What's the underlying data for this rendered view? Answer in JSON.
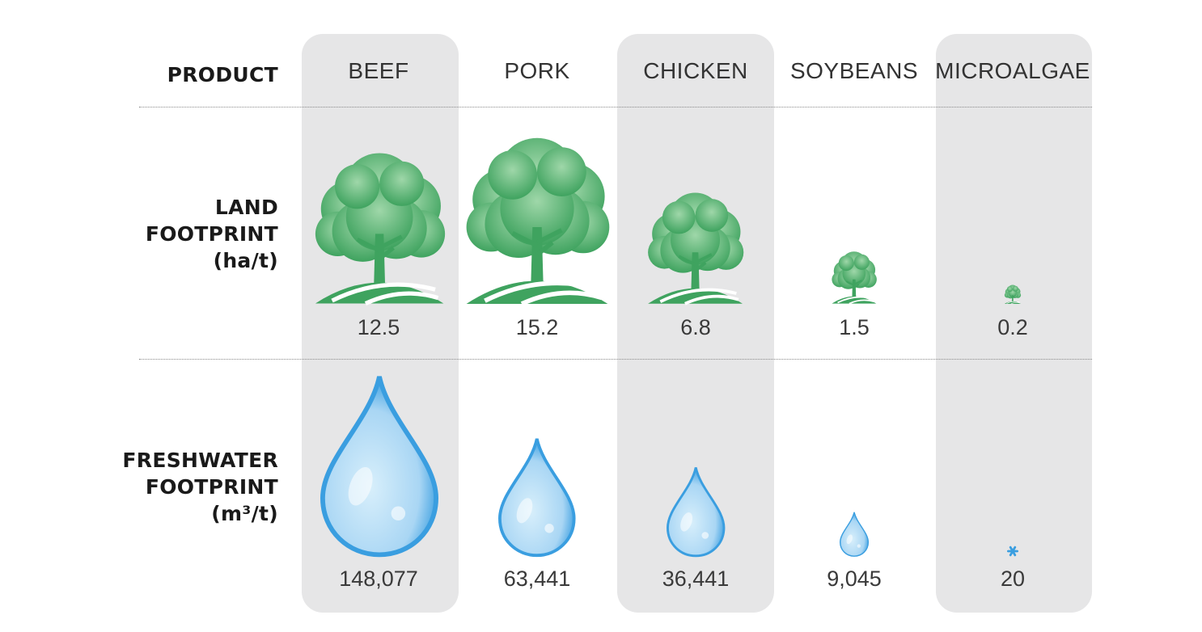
{
  "chart_data": {
    "type": "table",
    "row_headers": {
      "product": "PRODUCT",
      "land": [
        "LAND",
        "FOOTPRINT",
        "(ha/t)"
      ],
      "water": [
        "FRESHWATER",
        "FOOTPRINT",
        "(m³/t)"
      ]
    },
    "products": [
      {
        "name": "BEEF",
        "land": 12.5,
        "land_label": "12.5",
        "water": 148077,
        "water_label": "148,077"
      },
      {
        "name": "PORK",
        "land": 15.2,
        "land_label": "15.2",
        "water": 63441,
        "water_label": "63,441"
      },
      {
        "name": "CHICKEN",
        "land": 6.8,
        "land_label": "6.8",
        "water": 36441,
        "water_label": "36,441"
      },
      {
        "name": "SOYBEANS",
        "land": 1.5,
        "land_label": "1.5",
        "water": 9045,
        "water_label": "9,045"
      },
      {
        "name": "MICROALGAE",
        "land": 0.2,
        "land_label": "0.2",
        "water": 20,
        "water_label": "20"
      }
    ],
    "shaded_columns": [
      "BEEF",
      "CHICKEN",
      "MICROALGAE"
    ],
    "icons": {
      "land": "tree-on-hill-icon",
      "water": "water-drop-icon"
    },
    "colors": {
      "tree": "#3fa35f",
      "tree_light": "#9fd7a9",
      "water": "#3a9ee0",
      "water_light": "#d8effb",
      "column_shade": "#e6e6e7"
    }
  }
}
